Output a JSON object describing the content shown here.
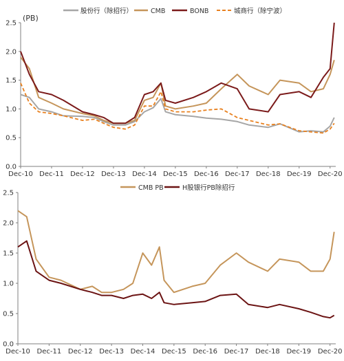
{
  "chart_data": [
    {
      "type": "line",
      "title": "",
      "unit_label": "(PB)",
      "xlabel": "",
      "ylabel": "",
      "ylim": [
        0,
        2.5
      ],
      "yticks": [
        "0.0",
        "0.5",
        "1.0",
        "1.5",
        "2.0",
        "2.5"
      ],
      "x_tick_labels": [
        "Dec-10",
        "Dec-11",
        "Dec-12",
        "Dec-13",
        "Dec-14",
        "Dec-15",
        "Dec-16",
        "Dec-17",
        "Dec-18",
        "Dec-19",
        "Dec-20"
      ],
      "x_range_years": [
        2010.917,
        2021.1
      ],
      "legend_position": "top",
      "series": [
        {
          "name": "股份行（除招行）",
          "color": "#a6a6a6",
          "dash": "solid",
          "x": [
            2010.917,
            2011.2,
            2011.5,
            2011.917,
            2012.3,
            2012.917,
            2013.3,
            2013.6,
            2013.917,
            2014.3,
            2014.6,
            2014.917,
            2015.2,
            2015.45,
            2015.6,
            2015.917,
            2016.5,
            2016.917,
            2017.4,
            2017.917,
            2018.3,
            2018.917,
            2019.3,
            2019.917,
            2020.3,
            2020.7,
            2020.917,
            2021.05
          ],
          "y": [
            1.25,
            1.2,
            1.0,
            0.95,
            0.88,
            0.87,
            0.85,
            0.78,
            0.72,
            0.72,
            0.78,
            0.95,
            1.02,
            1.18,
            0.95,
            0.9,
            0.87,
            0.84,
            0.82,
            0.78,
            0.72,
            0.68,
            0.74,
            0.6,
            0.62,
            0.6,
            0.7,
            0.85
          ]
        },
        {
          "name": "CMB",
          "color": "#c5955a",
          "dash": "solid",
          "x": [
            2010.917,
            2011.2,
            2011.5,
            2011.917,
            2012.3,
            2012.917,
            2013.3,
            2013.6,
            2013.917,
            2014.3,
            2014.6,
            2014.917,
            2015.2,
            2015.45,
            2015.6,
            2015.917,
            2016.5,
            2016.917,
            2017.4,
            2017.917,
            2018.3,
            2018.917,
            2019.3,
            2019.917,
            2020.3,
            2020.7,
            2020.917,
            2021.05
          ],
          "y": [
            1.9,
            1.7,
            1.2,
            1.1,
            1.0,
            0.92,
            0.88,
            0.8,
            0.75,
            0.75,
            0.8,
            1.15,
            1.2,
            1.45,
            1.05,
            1.0,
            1.05,
            1.1,
            1.35,
            1.6,
            1.4,
            1.25,
            1.5,
            1.45,
            1.3,
            1.35,
            1.6,
            1.85
          ]
        },
        {
          "name": "BONB",
          "color": "#7b1a1a",
          "dash": "solid",
          "x": [
            2010.917,
            2011.2,
            2011.5,
            2011.917,
            2012.3,
            2012.917,
            2013.3,
            2013.6,
            2013.917,
            2014.3,
            2014.6,
            2014.917,
            2015.2,
            2015.45,
            2015.6,
            2015.917,
            2016.5,
            2016.917,
            2017.4,
            2017.917,
            2018.3,
            2018.917,
            2019.3,
            2019.917,
            2020.3,
            2020.7,
            2020.917,
            2021.05
          ],
          "y": [
            2.0,
            1.6,
            1.3,
            1.25,
            1.15,
            0.95,
            0.9,
            0.85,
            0.75,
            0.75,
            0.85,
            1.25,
            1.3,
            1.45,
            1.15,
            1.1,
            1.2,
            1.3,
            1.45,
            1.35,
            1.0,
            0.95,
            1.25,
            1.3,
            1.2,
            1.55,
            1.7,
            2.5
          ]
        },
        {
          "name": "城商行（除宁波）",
          "color": "#e8801e",
          "dash": "dashed",
          "x": [
            2010.917,
            2011.2,
            2011.5,
            2011.917,
            2012.3,
            2012.917,
            2013.3,
            2013.6,
            2013.917,
            2014.3,
            2014.6,
            2014.917,
            2015.2,
            2015.45,
            2015.6,
            2015.917,
            2016.5,
            2016.917,
            2017.4,
            2017.917,
            2018.3,
            2018.917,
            2019.3,
            2019.917,
            2020.3,
            2020.7,
            2020.917,
            2021.05
          ],
          "y": [
            1.45,
            1.1,
            0.95,
            0.92,
            0.88,
            0.8,
            0.82,
            0.75,
            0.68,
            0.65,
            0.72,
            1.05,
            1.05,
            1.3,
            1.0,
            0.95,
            0.95,
            0.98,
            1.0,
            0.85,
            0.8,
            0.72,
            0.74,
            0.62,
            0.6,
            0.58,
            0.65,
            0.75
          ]
        }
      ]
    },
    {
      "type": "line",
      "title": "",
      "xlabel": "",
      "ylabel": "",
      "ylim": [
        0,
        2.5
      ],
      "yticks": [
        "0.0",
        "0.5",
        "1.0",
        "1.5",
        "2.0",
        "2.5"
      ],
      "x_tick_labels": [
        "Dec-10",
        "Dec-11",
        "Dec-12",
        "Dec-13",
        "Dec-14",
        "Dec-15",
        "Dec-16",
        "Dec-17",
        "Dec-18",
        "Dec-19",
        "Dec-20"
      ],
      "x_range_years": [
        2010.917,
        2021.1
      ],
      "legend_position": "top",
      "series": [
        {
          "name": "CMB PB",
          "color": "#c5955a",
          "dash": "solid",
          "x": [
            2010.917,
            2011.2,
            2011.5,
            2011.917,
            2012.3,
            2012.917,
            2013.3,
            2013.6,
            2013.917,
            2014.3,
            2014.6,
            2014.917,
            2015.2,
            2015.45,
            2015.6,
            2015.917,
            2016.5,
            2016.917,
            2017.4,
            2017.917,
            2018.3,
            2018.917,
            2019.3,
            2019.917,
            2020.3,
            2020.7,
            2020.917,
            2021.05
          ],
          "y": [
            2.2,
            2.1,
            1.4,
            1.1,
            1.05,
            0.9,
            0.95,
            0.85,
            0.85,
            0.9,
            1.0,
            1.5,
            1.3,
            1.6,
            1.05,
            0.85,
            0.95,
            1.0,
            1.3,
            1.5,
            1.35,
            1.2,
            1.4,
            1.35,
            1.2,
            1.2,
            1.4,
            1.85
          ]
        },
        {
          "name": "H股银行PB除招行",
          "color": "#6b1313",
          "dash": "solid",
          "x": [
            2010.917,
            2011.2,
            2011.5,
            2011.917,
            2012.3,
            2012.917,
            2013.3,
            2013.6,
            2013.917,
            2014.3,
            2014.6,
            2014.917,
            2015.2,
            2015.45,
            2015.6,
            2015.917,
            2016.5,
            2016.917,
            2017.4,
            2017.917,
            2018.3,
            2018.917,
            2019.3,
            2019.917,
            2020.3,
            2020.7,
            2020.917,
            2021.05
          ],
          "y": [
            1.6,
            1.7,
            1.2,
            1.05,
            1.0,
            0.9,
            0.85,
            0.8,
            0.8,
            0.75,
            0.8,
            0.82,
            0.75,
            0.85,
            0.68,
            0.65,
            0.68,
            0.7,
            0.8,
            0.82,
            0.65,
            0.6,
            0.65,
            0.58,
            0.52,
            0.45,
            0.43,
            0.47
          ]
        }
      ]
    }
  ]
}
